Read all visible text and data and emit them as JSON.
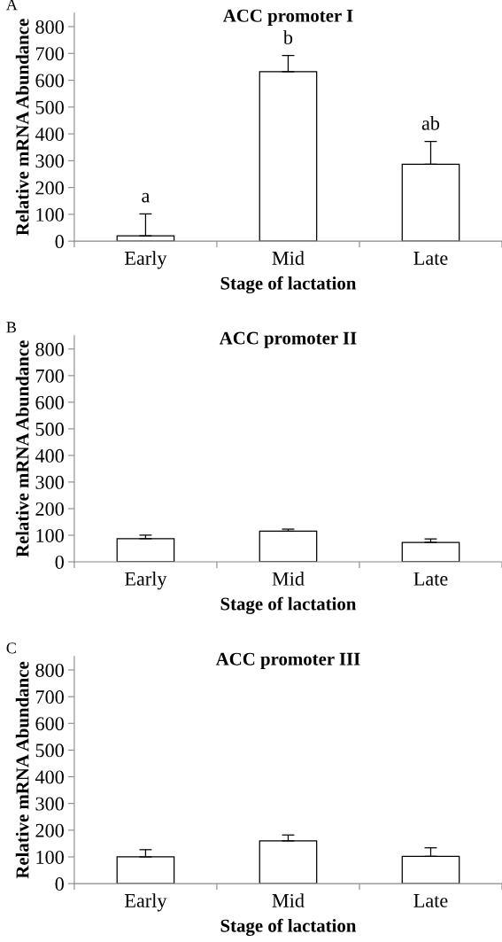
{
  "chart_data": [
    {
      "type": "bar",
      "title": "ACC promoter I",
      "xlabel": "Stage of lactation",
      "ylabel": "Relative mRNA Abundance",
      "categories": [
        "Early",
        "Mid",
        "Late"
      ],
      "values": [
        20,
        632,
        287
      ],
      "errors": [
        [
          20,
          102
        ],
        [
          632,
          692
        ],
        [
          287,
          372
        ]
      ],
      "color": "#ffffff",
      "ylim": [
        0,
        850
      ],
      "yticks": [
        0,
        100,
        200,
        300,
        400,
        500,
        600,
        700,
        800
      ],
      "grid": false,
      "legend": false,
      "annotations": [
        "A",
        {
          "text": "a",
          "x": "Early",
          "y": 102
        },
        {
          "text": "b",
          "x": "Mid",
          "y": 692
        },
        {
          "text": "ab",
          "x": "Late",
          "y": 372
        }
      ]
    },
    {
      "type": "bar",
      "title": "ACC promoter II",
      "xlabel": "Stage of lactation",
      "ylabel": "Relative mRNA Abundance",
      "categories": [
        "Early",
        "Mid",
        "Late"
      ],
      "values": [
        87,
        115,
        73
      ],
      "errors": [
        [
          87,
          100
        ],
        [
          115,
          123
        ],
        [
          73,
          86
        ]
      ],
      "color": "#ffffff",
      "ylim": [
        0,
        850
      ],
      "yticks": [
        0,
        100,
        200,
        300,
        400,
        500,
        600,
        700,
        800
      ],
      "grid": false,
      "legend": false,
      "annotations": [
        "B"
      ]
    },
    {
      "type": "bar",
      "title": "ACC promoter III",
      "xlabel": "Stage of lactation",
      "ylabel": "Relative mRNA Abundance",
      "categories": [
        "Early",
        "Mid",
        "Late"
      ],
      "values": [
        100,
        160,
        102
      ],
      "errors": [
        [
          100,
          127
        ],
        [
          160,
          182
        ],
        [
          102,
          134
        ]
      ],
      "color": "#ffffff",
      "ylim": [
        0,
        850
      ],
      "yticks": [
        0,
        100,
        200,
        300,
        400,
        500,
        600,
        700,
        800
      ],
      "grid": false,
      "legend": false,
      "annotations": [
        "C"
      ]
    }
  ]
}
